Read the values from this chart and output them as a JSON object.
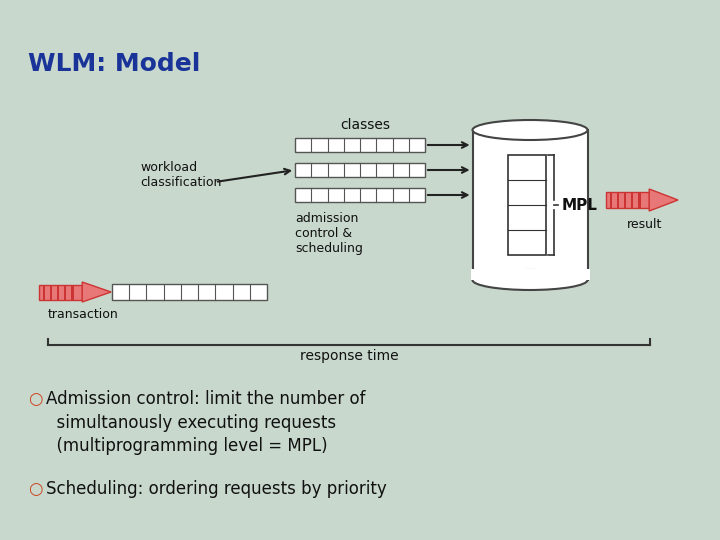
{
  "title": "WLM: Model",
  "title_color": "#1a3399",
  "bg_color": "#c8d8cc",
  "text_color": "#111111",
  "bullet_color": "#cc4422",
  "label_classes": "classes",
  "label_workload": "workload\nclassification",
  "label_admission": "admission\ncontrol &\nscheduling",
  "label_mpl": "MPL",
  "label_result": "result",
  "label_transaction": "transaction",
  "label_response": "response time",
  "arrow_face": "#e87878",
  "arrow_dark": "#cc3333",
  "stripe_border": "#888888",
  "cylinder_border": "#444444",
  "line_color": "#222222"
}
